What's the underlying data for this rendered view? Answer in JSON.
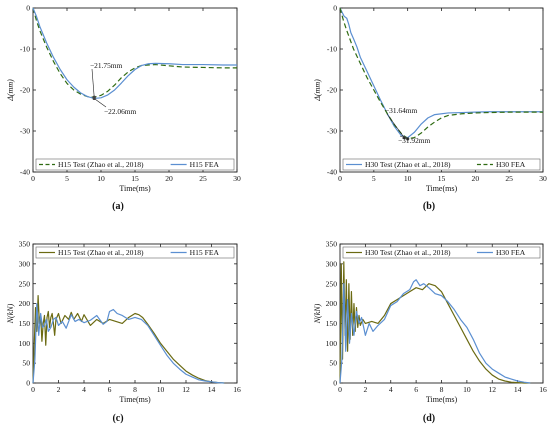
{
  "chart_data": [
    {
      "panel": "a",
      "caption": "(a)",
      "type": "line",
      "xlabel": "Time(ms)",
      "ylabel": "Δ(mm)",
      "xlim": [
        0,
        30
      ],
      "ylim": [
        -40,
        0
      ],
      "xticks": [
        0,
        5,
        10,
        15,
        20,
        25,
        30
      ],
      "yticks": [
        0,
        -10,
        -20,
        -30,
        -40
      ],
      "legend": "bottom",
      "series": [
        {
          "name": "H15 Test (Zhao et al., 2018)",
          "color": "#2f6b12",
          "style": "dashed",
          "x": [
            0,
            0.5,
            1,
            2,
            3,
            4,
            5,
            6,
            7,
            8,
            9,
            10,
            11,
            12,
            13,
            14,
            15,
            16,
            18,
            20,
            22,
            25,
            28,
            30
          ],
          "y": [
            0,
            -3,
            -5.5,
            -9.5,
            -13,
            -16,
            -18.4,
            -20,
            -21,
            -21.6,
            -21.75,
            -21.3,
            -20.3,
            -18.8,
            -17,
            -15.6,
            -14.6,
            -14,
            -13.8,
            -14.1,
            -14.4,
            -14.5,
            -14.6,
            -14.6
          ]
        },
        {
          "name": "H15 FEA",
          "color": "#5b8fd1",
          "style": "solid",
          "x": [
            0,
            0.5,
            1,
            2,
            3,
            4,
            5,
            6,
            7,
            8,
            9,
            10,
            11,
            12,
            13,
            14,
            15,
            16,
            17,
            18,
            20,
            22,
            25,
            28,
            30
          ],
          "y": [
            0,
            -2,
            -4.5,
            -8.5,
            -12,
            -15,
            -17.5,
            -19.3,
            -20.7,
            -21.6,
            -22.06,
            -21.9,
            -21.2,
            -20,
            -18.3,
            -16.5,
            -15,
            -14,
            -13.6,
            -13.5,
            -13.6,
            -13.8,
            -13.8,
            -13.9,
            -13.9
          ]
        }
      ],
      "annotations": [
        {
          "text": "−21.75mm",
          "x": 9,
          "y": -21.75
        },
        {
          "text": "−22.06mm",
          "x": 9,
          "y": -22.06
        }
      ]
    },
    {
      "panel": "b",
      "caption": "(b)",
      "type": "line",
      "xlabel": "Time(ms)",
      "ylabel": "Δ(mm)",
      "xlim": [
        0,
        30
      ],
      "ylim": [
        -40,
        0
      ],
      "xticks": [
        0,
        5,
        10,
        15,
        20,
        25,
        30
      ],
      "yticks": [
        0,
        -10,
        -20,
        -30,
        -40
      ],
      "legend": "bottom",
      "series": [
        {
          "name": "H30 Test (Zhao et al., 2018)",
          "color": "#5b8fd1",
          "style": "solid",
          "x": [
            0,
            0.3,
            0.6,
            1,
            1.3,
            1.6,
            2,
            2.5,
            3,
            4,
            5,
            6,
            7,
            8,
            9,
            10,
            11,
            12,
            13,
            14,
            16,
            18,
            20,
            22,
            25,
            28,
            30
          ],
          "y": [
            0,
            -1,
            -2,
            -2.5,
            -4,
            -6,
            -7.5,
            -9.5,
            -12,
            -15.5,
            -19,
            -22.5,
            -25.8,
            -28.8,
            -31,
            -31.64,
            -30.3,
            -28.3,
            -26.8,
            -26,
            -25.6,
            -25.5,
            -25.4,
            -25.3,
            -25.3,
            -25.3,
            -25.3
          ]
        },
        {
          "name": "H30 FEA",
          "color": "#2f6b12",
          "style": "dashed",
          "x": [
            0,
            0.5,
            1,
            2,
            3,
            4,
            5,
            6,
            7,
            8,
            9,
            10,
            11,
            12,
            13,
            14,
            15,
            16,
            18,
            20,
            22,
            25,
            28,
            30
          ],
          "y": [
            0,
            -3,
            -5.5,
            -10,
            -13.5,
            -17,
            -20,
            -23,
            -25.8,
            -28.4,
            -30.5,
            -31.92,
            -31.6,
            -30.5,
            -29,
            -27.8,
            -26.8,
            -26.2,
            -25.8,
            -25.6,
            -25.5,
            -25.4,
            -25.4,
            -25.4
          ]
        }
      ],
      "annotations": [
        {
          "text": "−31.64mm",
          "x": 9.5,
          "y": -31.64
        },
        {
          "text": "−31.92mm",
          "x": 10,
          "y": -31.92
        }
      ]
    },
    {
      "panel": "c",
      "caption": "(c)",
      "type": "line",
      "xlabel": "Time(ms)",
      "ylabel": "N(kN)",
      "xlim": [
        0,
        16
      ],
      "ylim": [
        0,
        350
      ],
      "xticks": [
        0,
        2,
        4,
        6,
        8,
        10,
        12,
        14,
        16
      ],
      "yticks": [
        0,
        50,
        100,
        150,
        200,
        250,
        300,
        350
      ],
      "legend": "top",
      "series": [
        {
          "name": "H15 Test (Zhao et al., 2018)",
          "color": "#6b6a12",
          "style": "solid",
          "x": [
            0,
            0.1,
            0.2,
            0.3,
            0.4,
            0.5,
            0.6,
            0.7,
            0.8,
            0.9,
            1.0,
            1.1,
            1.2,
            1.3,
            1.4,
            1.5,
            1.6,
            1.7,
            1.8,
            2,
            2.2,
            2.5,
            2.8,
            3.0,
            3.2,
            3.5,
            3.8,
            4,
            4.5,
            5,
            5.5,
            6,
            6.5,
            7,
            7.5,
            8,
            8.3,
            8.6,
            9,
            9.5,
            10,
            10.5,
            11,
            11.5,
            12,
            12.5,
            13,
            13.5,
            14,
            14.5,
            15
          ],
          "y": [
            0,
            100,
            190,
            130,
            220,
            150,
            170,
            105,
            150,
            170,
            95,
            165,
            180,
            140,
            165,
            175,
            150,
            120,
            160,
            175,
            150,
            170,
            160,
            178,
            160,
            175,
            155,
            172,
            145,
            160,
            150,
            160,
            155,
            150,
            165,
            175,
            172,
            165,
            148,
            125,
            100,
            80,
            60,
            45,
            30,
            20,
            12,
            6,
            3,
            1,
            0
          ]
        },
        {
          "name": "H15 FEA",
          "color": "#5b8fd1",
          "style": "solid",
          "x": [
            0,
            0.15,
            0.3,
            0.45,
            0.6,
            0.75,
            0.9,
            1.05,
            1.2,
            1.4,
            1.6,
            1.8,
            2,
            2.3,
            2.6,
            3,
            3.3,
            3.6,
            4,
            4.5,
            5,
            5.5,
            5.8,
            6,
            6.3,
            6.6,
            7,
            7.5,
            8,
            8.5,
            9,
            9.5,
            10,
            10.5,
            11,
            11.5,
            12,
            12.5,
            13,
            13.5,
            14,
            14.5,
            15
          ],
          "y": [
            0,
            60,
            200,
            120,
            175,
            140,
            145,
            160,
            130,
            140,
            160,
            165,
            145,
            155,
            138,
            172,
            155,
            160,
            152,
            158,
            170,
            148,
            155,
            180,
            185,
            175,
            170,
            160,
            165,
            160,
            145,
            120,
            95,
            70,
            50,
            35,
            22,
            15,
            8,
            5,
            3,
            1,
            0
          ]
        }
      ]
    },
    {
      "panel": "d",
      "caption": "(d)",
      "type": "line",
      "xlabel": "Time(ms)",
      "ylabel": "N(kN)",
      "xlim": [
        0,
        16
      ],
      "ylim": [
        0,
        350
      ],
      "xticks": [
        0,
        2,
        4,
        6,
        8,
        10,
        12,
        14,
        16
      ],
      "yticks": [
        0,
        50,
        100,
        150,
        200,
        250,
        300,
        350
      ],
      "legend": "top",
      "series": [
        {
          "name": "H30 Test (Zhao et al., 2018)",
          "color": "#6b6a12",
          "style": "solid",
          "x": [
            0,
            0.1,
            0.2,
            0.3,
            0.4,
            0.5,
            0.6,
            0.7,
            0.8,
            0.9,
            1.0,
            1.1,
            1.2,
            1.3,
            1.4,
            1.5,
            1.6,
            1.8,
            2,
            2.5,
            3,
            3.5,
            4,
            4.5,
            5,
            5.5,
            6,
            6.5,
            7,
            7.5,
            8,
            8.5,
            9,
            9.5,
            10,
            10.5,
            11,
            11.5,
            12,
            12.5,
            13,
            13.5,
            14,
            14.5,
            15
          ],
          "y": [
            0,
            300,
            60,
            305,
            120,
            260,
            80,
            250,
            110,
            230,
            120,
            200,
            130,
            190,
            140,
            170,
            145,
            160,
            150,
            155,
            150,
            170,
            200,
            210,
            220,
            230,
            240,
            235,
            250,
            245,
            230,
            200,
            170,
            140,
            110,
            80,
            55,
            35,
            20,
            10,
            5,
            2,
            1,
            0,
            0
          ]
        },
        {
          "name": "H30 FEA",
          "color": "#5b8fd1",
          "style": "solid",
          "x": [
            0,
            0.15,
            0.3,
            0.45,
            0.6,
            0.75,
            0.9,
            1.1,
            1.3,
            1.5,
            1.7,
            2,
            2.3,
            2.6,
            3,
            3.5,
            4,
            4.5,
            5,
            5.5,
            5.8,
            6,
            6.3,
            6.6,
            7,
            7.5,
            8,
            8.5,
            9,
            9.5,
            10,
            10.5,
            11,
            11.5,
            12,
            12.5,
            13,
            13.5,
            14,
            14.5,
            15
          ],
          "y": [
            0,
            60,
            250,
            80,
            210,
            100,
            175,
            120,
            180,
            150,
            165,
            120,
            150,
            130,
            145,
            160,
            195,
            205,
            225,
            235,
            255,
            260,
            245,
            250,
            240,
            225,
            220,
            205,
            185,
            160,
            140,
            110,
            75,
            50,
            35,
            25,
            15,
            10,
            5,
            2,
            0
          ]
        }
      ]
    }
  ]
}
